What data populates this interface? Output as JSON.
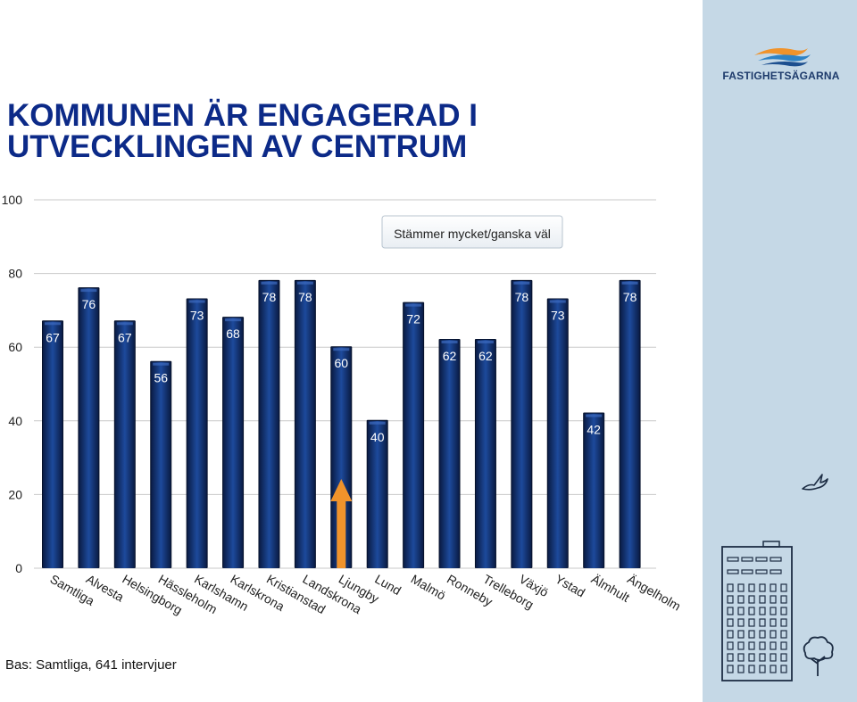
{
  "slide": {
    "title_lines": [
      "KOMMUNEN ÄR ENGAGERAD I",
      "UTVECKLINGEN AV CENTRUM"
    ],
    "footnote": "Bas: Samtliga, 641 intervjuer",
    "logo_text": "FASTIGHETSÄGARNA"
  },
  "chart_data": {
    "type": "bar",
    "title": "",
    "xlabel": "",
    "ylabel": "",
    "ylim": [
      0,
      100
    ],
    "yticks": [
      0,
      20,
      40,
      60,
      80,
      100
    ],
    "grid": false,
    "legend": "top-right",
    "categories": [
      "Samtliga",
      "Alvesta",
      "Helsingborg",
      "Hässleholm",
      "Karlshamn",
      "Karlskrona",
      "Kristianstad",
      "Landskrona",
      "Ljungby",
      "Lund",
      "Malmö",
      "Ronneby",
      "Trelleborg",
      "Växjö",
      "Ystad",
      "Älmhult",
      "Ängelholm"
    ],
    "series": [
      {
        "name": "Stämmer mycket/ganska väl",
        "values": [
          67,
          76,
          67,
          56,
          73,
          68,
          78,
          78,
          60,
          40,
          72,
          62,
          62,
          78,
          73,
          42,
          78
        ]
      }
    ],
    "annotation": {
      "type": "arrow",
      "category": "Ljungby",
      "color": "#f0932b"
    },
    "colors": {
      "bar_light": "#1d4a9c",
      "bar_dark": "#0a1c45",
      "label": "#ffffff",
      "tick": "#222222"
    }
  }
}
